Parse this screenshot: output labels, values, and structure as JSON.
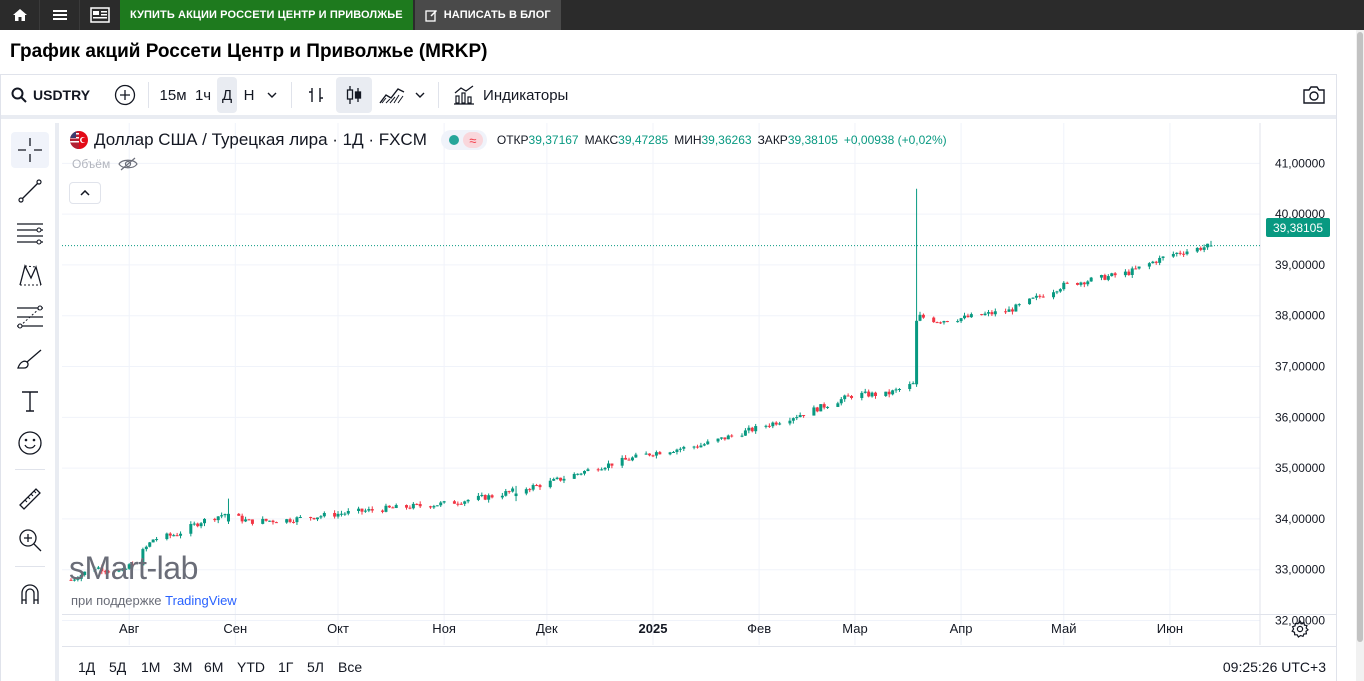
{
  "topbar": {
    "home_icon": "home-icon",
    "menu_icon": "hamburger-icon",
    "news_icon": "newspaper-icon",
    "buy_label": "КУПИТЬ АКЦИИ РОССЕТИ ЦЕНТР И ПРИВОЛЖЬЕ",
    "blog_label": "НАПИСАТЬ В БЛОГ"
  },
  "page_title": "График акций Россети Центр и Приволжье (MRKP)",
  "toolbar": {
    "symbol": "USDTRY",
    "intervals": [
      "15м",
      "1ч",
      "Д",
      "Н"
    ],
    "selected_interval": "Д",
    "indicators_label": "Индикаторы"
  },
  "legend": {
    "title": "Доллар США / Турецкая лира · 1Д · FXCM",
    "open_label": "ОТКР",
    "open_value": "39,37167",
    "high_label": "МАКС",
    "high_value": "39,47285",
    "low_label": "МИН",
    "low_value": "39,36263",
    "close_label": "ЗАКР",
    "close_value": "39,38105",
    "change": "+0,00938 (+0,02%)",
    "volume_label": "Объём"
  },
  "watermark": "sMart-lab",
  "support": {
    "prefix": "при поддержке",
    "brand": "TradingView"
  },
  "ranges": [
    "1Д",
    "5Д",
    "1М",
    "3М",
    "6М",
    "YTD",
    "1Г",
    "5Л",
    "Все"
  ],
  "clock": "09:25:26 UTC+3",
  "colors": {
    "up": "#089981",
    "down": "#f23645",
    "accent": "#2962ff",
    "brand_green": "#1e7a1e"
  },
  "chart_data": {
    "type": "candlestick",
    "symbol": "USDTRY",
    "title": "Доллар США / Турецкая лира · 1Д · FXCM",
    "ylim": [
      31.9,
      41.4
    ],
    "y_ticks": [
      "41,00000",
      "40,00000",
      "39,00000",
      "38,00000",
      "37,00000",
      "36,00000",
      "35,00000",
      "34,00000",
      "33,00000",
      "32,00000"
    ],
    "y_tick_values": [
      41,
      40,
      39,
      38,
      37,
      36,
      35,
      34,
      33,
      32
    ],
    "x_labels": [
      {
        "label": "Авг",
        "date": "2024-08-01"
      },
      {
        "label": "Сен",
        "date": "2024-09-01"
      },
      {
        "label": "Окт",
        "date": "2024-10-01"
      },
      {
        "label": "Ноя",
        "date": "2024-11-01"
      },
      {
        "label": "Дек",
        "date": "2024-12-01"
      },
      {
        "label": "2025",
        "date": "2025-01-01",
        "bold": true
      },
      {
        "label": "Фев",
        "date": "2025-02-01"
      },
      {
        "label": "Мар",
        "date": "2025-03-01"
      },
      {
        "label": "Апр",
        "date": "2025-04-01"
      },
      {
        "label": "Май",
        "date": "2025-05-01"
      },
      {
        "label": "Июн",
        "date": "2025-06-01"
      }
    ],
    "start_date": "2024-07-15",
    "end_date": "2025-06-13",
    "last_price": 39.38105,
    "last_price_label": "39,38105",
    "anchors": [
      {
        "date": "2024-07-15",
        "v": 32.8
      },
      {
        "date": "2024-07-22",
        "v": 33.05
      },
      {
        "date": "2024-07-30",
        "v": 32.95
      },
      {
        "date": "2024-08-03",
        "v": 33.2
      },
      {
        "date": "2024-08-08",
        "v": 33.6
      },
      {
        "date": "2024-08-15",
        "v": 33.7
      },
      {
        "date": "2024-08-22",
        "v": 33.95
      },
      {
        "date": "2024-08-29",
        "v": 34.1
      },
      {
        "date": "2024-09-05",
        "v": 33.95
      },
      {
        "date": "2024-09-16",
        "v": 33.98
      },
      {
        "date": "2024-10-01",
        "v": 34.1
      },
      {
        "date": "2024-10-15",
        "v": 34.2
      },
      {
        "date": "2024-11-01",
        "v": 34.3
      },
      {
        "date": "2024-11-15",
        "v": 34.45
      },
      {
        "date": "2024-12-01",
        "v": 34.7
      },
      {
        "date": "2024-12-15",
        "v": 35.0
      },
      {
        "date": "2025-01-01",
        "v": 35.3
      },
      {
        "date": "2025-01-15",
        "v": 35.45
      },
      {
        "date": "2025-02-01",
        "v": 35.8
      },
      {
        "date": "2025-02-15",
        "v": 36.1
      },
      {
        "date": "2025-03-01",
        "v": 36.45
      },
      {
        "date": "2025-03-10",
        "v": 36.45
      },
      {
        "date": "2025-03-18",
        "v": 36.65
      },
      {
        "date": "2025-03-19",
        "v": 38.0
      },
      {
        "date": "2025-03-25",
        "v": 37.9
      },
      {
        "date": "2025-04-01",
        "v": 37.95
      },
      {
        "date": "2025-04-15",
        "v": 38.1
      },
      {
        "date": "2025-05-01",
        "v": 38.6
      },
      {
        "date": "2025-05-20",
        "v": 38.85
      },
      {
        "date": "2025-06-01",
        "v": 39.2
      },
      {
        "date": "2025-06-13",
        "v": 39.38
      }
    ],
    "special_bars": [
      {
        "date": "2024-08-30",
        "open": 33.95,
        "high": 34.4,
        "low": 33.9,
        "close": 34.1
      },
      {
        "date": "2024-11-22",
        "open": 34.45,
        "high": 34.65,
        "low": 34.35,
        "close": 34.5
      },
      {
        "date": "2025-03-19",
        "open": 36.65,
        "high": 40.5,
        "low": 36.6,
        "close": 37.9
      },
      {
        "date": "2025-06-13",
        "open": 39.37167,
        "high": 39.47285,
        "low": 39.36263,
        "close": 39.38105
      }
    ]
  }
}
